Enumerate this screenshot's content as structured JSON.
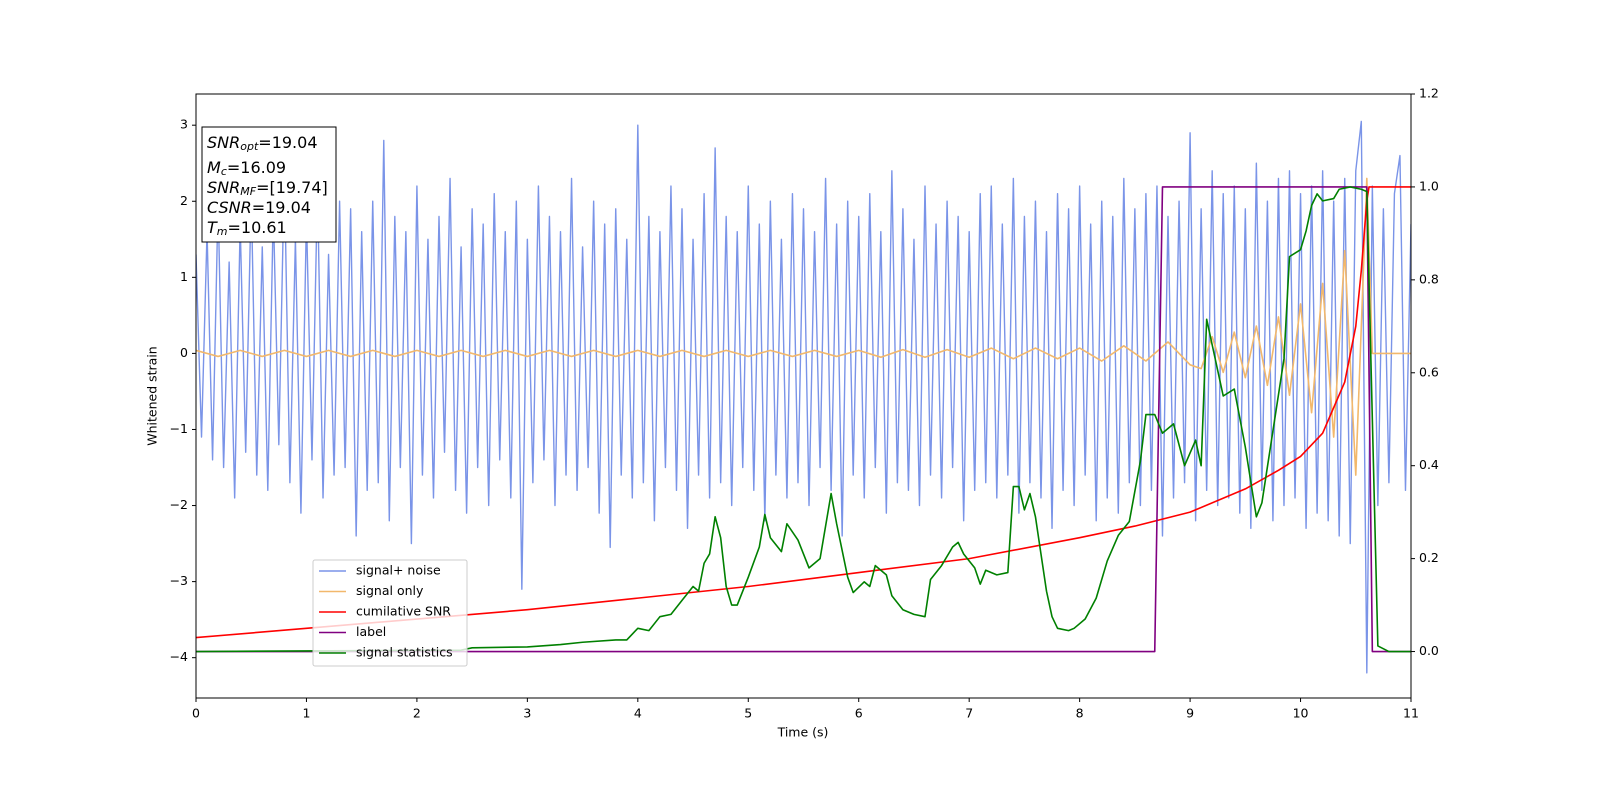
{
  "chart_data": {
    "type": "line",
    "xlabel": "Time (s)",
    "ylabel": "Whitened strain",
    "xlim": [
      0,
      11
    ],
    "ylim": [
      -4.53,
      3.41
    ],
    "y2lim": [
      -0.1,
      1.2
    ],
    "xticks": [
      0,
      1,
      2,
      3,
      4,
      5,
      6,
      7,
      8,
      9,
      10,
      11
    ],
    "yticks": [
      {
        "value": -4,
        "label": "−4"
      },
      {
        "value": -3,
        "label": "−3"
      },
      {
        "value": -2,
        "label": "−2"
      },
      {
        "value": -1,
        "label": "−1"
      },
      0,
      1,
      2,
      3
    ],
    "y2ticks": [
      {
        "value": 0,
        "label": "0.0"
      },
      0.2,
      0.4,
      0.6,
      0.8,
      {
        "value": 1,
        "label": "1.0"
      },
      1.2
    ],
    "legend": "lower left",
    "annotations": [
      {
        "symbol": "SNR",
        "subscript": "opt",
        "text": "=19.04"
      },
      {
        "symbol": "M",
        "subscript": "c",
        "text": "=16.09"
      },
      {
        "symbol": "SNR",
        "subscript": "MF",
        "text": "=[19.74]"
      },
      {
        "symbol": "CSNR",
        "text": "=19.04"
      },
      {
        "symbol": "T",
        "subscript": "m",
        "text": "=10.61"
      }
    ],
    "series": [
      {
        "name": "signal+ noise",
        "color": "#7a94e8",
        "x": [
          0,
          0.05,
          0.1,
          0.15,
          0.2,
          0.25,
          0.3,
          0.35,
          0.4,
          0.45,
          0.5,
          0.55,
          0.6,
          0.65,
          0.7,
          0.75,
          0.8,
          0.85,
          0.9,
          0.95,
          1,
          1.05,
          1.1,
          1.15,
          1.2,
          1.25,
          1.3,
          1.35,
          1.4,
          1.45,
          1.5,
          1.55,
          1.6,
          1.65,
          1.7,
          1.75,
          1.8,
          1.85,
          1.9,
          1.95,
          2,
          2.05,
          2.1,
          2.15,
          2.2,
          2.25,
          2.3,
          2.35,
          2.4,
          2.45,
          2.5,
          2.55,
          2.6,
          2.65,
          2.7,
          2.75,
          2.8,
          2.85,
          2.9,
          2.95,
          3,
          3.05,
          3.1,
          3.15,
          3.2,
          3.25,
          3.3,
          3.35,
          3.4,
          3.45,
          3.5,
          3.55,
          3.6,
          3.65,
          3.7,
          3.75,
          3.8,
          3.85,
          3.9,
          3.95,
          4,
          4.05,
          4.1,
          4.15,
          4.2,
          4.25,
          4.3,
          4.35,
          4.4,
          4.45,
          4.5,
          4.55,
          4.6,
          4.65,
          4.7,
          4.75,
          4.8,
          4.85,
          4.9,
          4.95,
          5,
          5.05,
          5.1,
          5.15,
          5.2,
          5.25,
          5.3,
          5.35,
          5.4,
          5.45,
          5.5,
          5.55,
          5.6,
          5.65,
          5.7,
          5.75,
          5.8,
          5.85,
          5.9,
          5.95,
          6,
          6.05,
          6.1,
          6.15,
          6.2,
          6.25,
          6.3,
          6.35,
          6.4,
          6.45,
          6.5,
          6.55,
          6.6,
          6.65,
          6.7,
          6.75,
          6.8,
          6.85,
          6.9,
          6.95,
          7,
          7.05,
          7.1,
          7.15,
          7.2,
          7.25,
          7.3,
          7.35,
          7.4,
          7.45,
          7.5,
          7.55,
          7.6,
          7.65,
          7.7,
          7.75,
          7.8,
          7.85,
          7.9,
          7.95,
          8,
          8.05,
          8.1,
          8.15,
          8.2,
          8.25,
          8.3,
          8.35,
          8.4,
          8.45,
          8.5,
          8.55,
          8.6,
          8.65,
          8.7,
          8.75,
          8.8,
          8.85,
          8.9,
          8.95,
          9,
          9.05,
          9.1,
          9.15,
          9.2,
          9.25,
          9.3,
          9.35,
          9.4,
          9.45,
          9.5,
          9.55,
          9.6,
          9.65,
          9.7,
          9.75,
          9.8,
          9.85,
          9.9,
          9.95,
          10,
          10.05,
          10.1,
          10.15,
          10.2,
          10.25,
          10.3,
          10.35,
          10.4,
          10.45,
          10.5,
          10.55,
          10.6,
          10.65,
          10.7,
          10.75,
          10.8,
          10.85,
          10.9,
          10.95,
          11
        ],
        "values": [
          1.3,
          -1.1,
          1.6,
          -1.4,
          2.0,
          -1.5,
          1.2,
          -1.9,
          1.7,
          -1.3,
          2.1,
          -1.6,
          1.4,
          -1.8,
          1.9,
          -1.2,
          2.4,
          -1.7,
          1.5,
          -2.1,
          1.8,
          -1.4,
          2.2,
          -1.9,
          1.3,
          -1.6,
          2.0,
          -1.5,
          1.9,
          -2.4,
          1.6,
          -1.8,
          2.0,
          -1.7,
          2.8,
          -2.2,
          1.8,
          -1.5,
          1.6,
          -2.5,
          2.2,
          -1.6,
          1.5,
          -1.9,
          1.8,
          -1.3,
          2.3,
          -1.8,
          1.4,
          -2.1,
          1.9,
          -1.5,
          1.7,
          -2.0,
          2.1,
          -1.4,
          1.6,
          -1.9,
          2.0,
          -3.1,
          1.5,
          -1.7,
          2.2,
          -1.4,
          1.8,
          -2.0,
          1.6,
          -1.6,
          2.3,
          -1.8,
          1.4,
          -1.5,
          2.0,
          -2.1,
          1.7,
          -2.55,
          1.9,
          -1.6,
          1.5,
          -1.9,
          3.0,
          -1.7,
          1.8,
          -2.2,
          1.6,
          -1.5,
          2.2,
          -1.8,
          1.9,
          -2.3,
          1.5,
          -1.6,
          2.1,
          -1.9,
          2.7,
          -1.7,
          1.8,
          -2.0,
          1.6,
          -1.5,
          2.2,
          -1.8,
          1.7,
          -2.2,
          2.0,
          -1.6,
          1.5,
          -1.9,
          2.1,
          -1.7,
          1.9,
          -2.0,
          1.6,
          -1.5,
          2.3,
          -1.8,
          1.7,
          -2.4,
          2.0,
          -1.6,
          1.8,
          -1.9,
          2.1,
          -1.5,
          1.6,
          -2.1,
          2.4,
          -1.7,
          1.9,
          -1.8,
          1.5,
          -2.0,
          2.2,
          -1.6,
          1.7,
          -1.9,
          2.0,
          -1.5,
          1.8,
          -2.2,
          1.6,
          -1.8,
          2.1,
          -1.7,
          2.2,
          -1.9,
          1.7,
          -1.6,
          2.3,
          -2.1,
          1.8,
          -1.7,
          2.0,
          -1.9,
          1.6,
          -2.3,
          2.1,
          -1.8,
          1.9,
          -2.0,
          2.2,
          -1.6,
          1.7,
          -2.2,
          2.0,
          -1.9,
          1.8,
          -2.1,
          2.3,
          -1.7,
          1.9,
          -2.0,
          2.1,
          -1.8,
          2.2,
          -2.4,
          1.8,
          -1.9,
          2.0,
          -1.7,
          2.9,
          -2.2,
          1.9,
          -1.8,
          2.4,
          -2.0,
          2.1,
          -1.9,
          2.2,
          -2.1,
          1.9,
          -2.3,
          2.5,
          -1.8,
          2.0,
          -2.2,
          2.3,
          -2.0,
          2.4,
          -1.9,
          2.1,
          -2.3,
          2.2,
          -2.1,
          2.4,
          -2.2,
          2.0,
          -2.4,
          2.3,
          -2.5,
          2.4,
          3.05,
          -4.2,
          2.2,
          -2.0,
          1.9,
          -1.7,
          2.1,
          2.6,
          -1.8,
          1.7
        ]
      },
      {
        "name": "signal only",
        "color": "#f2b86c",
        "x": [
          0,
          0.2,
          0.4,
          0.6,
          0.8,
          1,
          1.2,
          1.4,
          1.6,
          1.8,
          2,
          2.2,
          2.4,
          2.6,
          2.8,
          3,
          3.2,
          3.4,
          3.6,
          3.8,
          4,
          4.2,
          4.4,
          4.6,
          4.8,
          5,
          5.2,
          5.4,
          5.6,
          5.8,
          6,
          6.2,
          6.4,
          6.6,
          6.8,
          7,
          7.2,
          7.4,
          7.6,
          7.8,
          8,
          8.2,
          8.4,
          8.6,
          8.8,
          9,
          9.1,
          9.2,
          9.3,
          9.4,
          9.5,
          9.6,
          9.7,
          9.8,
          9.9,
          10,
          10.1,
          10.2,
          10.3,
          10.4,
          10.5,
          10.6,
          10.65,
          11
        ],
        "values": [
          0.04,
          -0.04,
          0.04,
          -0.04,
          0.04,
          -0.04,
          0.04,
          -0.04,
          0.04,
          -0.04,
          0.04,
          -0.04,
          0.04,
          -0.04,
          0.04,
          -0.04,
          0.04,
          -0.04,
          0.04,
          -0.04,
          0.04,
          -0.04,
          0.04,
          -0.04,
          0.04,
          -0.04,
          0.04,
          -0.04,
          0.04,
          -0.04,
          0.04,
          -0.05,
          0.05,
          -0.05,
          0.05,
          -0.05,
          0.07,
          -0.07,
          0.07,
          -0.07,
          0.07,
          -0.1,
          0.1,
          -0.1,
          0.15,
          -0.15,
          -0.2,
          0.22,
          -0.25,
          0.28,
          -0.32,
          0.36,
          -0.42,
          0.48,
          -0.55,
          0.65,
          -0.78,
          0.92,
          -1.1,
          1.35,
          -1.6,
          2.3,
          0,
          0
        ]
      },
      {
        "name": "cumilative SNR",
        "color": "#ff0000",
        "axis": "y2",
        "x": [
          0,
          1,
          2,
          3,
          4,
          5,
          6,
          7,
          8,
          8.5,
          9,
          9.5,
          9.8,
          10,
          10.2,
          10.4,
          10.5,
          10.55,
          10.6,
          10.62,
          11
        ],
        "values": [
          0.03,
          0.05,
          0.07,
          0.09,
          0.115,
          0.14,
          0.17,
          0.2,
          0.245,
          0.27,
          0.3,
          0.35,
          0.39,
          0.42,
          0.47,
          0.58,
          0.7,
          0.82,
          0.97,
          1,
          1
        ]
      },
      {
        "name": "label",
        "color": "#800080",
        "axis": "y2",
        "x": [
          0,
          8.68,
          8.75,
          10.6,
          10.65,
          11
        ],
        "values": [
          0,
          0,
          1,
          1,
          0,
          0
        ]
      },
      {
        "name": "signal statistics",
        "color": "#008000",
        "axis": "y2",
        "x": [
          0,
          2.4,
          2.5,
          3,
          3.3,
          3.5,
          3.8,
          3.9,
          4,
          4.1,
          4.2,
          4.3,
          4.4,
          4.5,
          4.55,
          4.6,
          4.65,
          4.7,
          4.75,
          4.8,
          4.85,
          4.9,
          5,
          5.1,
          5.15,
          5.2,
          5.3,
          5.35,
          5.45,
          5.55,
          5.65,
          5.75,
          5.8,
          5.9,
          5.95,
          6.05,
          6.1,
          6.15,
          6.25,
          6.3,
          6.4,
          6.5,
          6.6,
          6.65,
          6.75,
          6.85,
          6.9,
          6.95,
          7.05,
          7.1,
          7.15,
          7.25,
          7.35,
          7.4,
          7.45,
          7.5,
          7.55,
          7.6,
          7.65,
          7.7,
          7.75,
          7.8,
          7.9,
          7.95,
          8.05,
          8.15,
          8.25,
          8.35,
          8.45,
          8.55,
          8.6,
          8.68,
          8.75,
          8.85,
          8.95,
          9.05,
          9.1,
          9.15,
          9.2,
          9.3,
          9.4,
          9.5,
          9.6,
          9.65,
          9.75,
          9.85,
          9.9,
          10,
          10.05,
          10.1,
          10.15,
          10.2,
          10.3,
          10.35,
          10.45,
          10.55,
          10.6,
          10.65,
          10.7,
          10.8,
          11
        ],
        "values": [
          0,
          0.003,
          0.008,
          0.01,
          0.015,
          0.02,
          0.025,
          0.025,
          0.05,
          0.045,
          0.075,
          0.08,
          0.11,
          0.14,
          0.13,
          0.19,
          0.21,
          0.29,
          0.245,
          0.14,
          0.1,
          0.1,
          0.16,
          0.225,
          0.295,
          0.245,
          0.215,
          0.275,
          0.24,
          0.18,
          0.2,
          0.34,
          0.275,
          0.16,
          0.127,
          0.15,
          0.14,
          0.185,
          0.165,
          0.12,
          0.09,
          0.08,
          0.075,
          0.155,
          0.185,
          0.225,
          0.235,
          0.21,
          0.18,
          0.145,
          0.175,
          0.165,
          0.17,
          0.355,
          0.355,
          0.305,
          0.34,
          0.29,
          0.21,
          0.13,
          0.075,
          0.05,
          0.045,
          0.05,
          0.07,
          0.115,
          0.195,
          0.25,
          0.28,
          0.41,
          0.51,
          0.51,
          0.47,
          0.49,
          0.4,
          0.455,
          0.4,
          0.715,
          0.66,
          0.55,
          0.565,
          0.44,
          0.29,
          0.32,
          0.475,
          0.63,
          0.85,
          0.865,
          0.905,
          0.96,
          0.985,
          0.97,
          0.975,
          0.995,
          1,
          0.995,
          0.99,
          0.5,
          0.012,
          0,
          0
        ]
      }
    ]
  }
}
